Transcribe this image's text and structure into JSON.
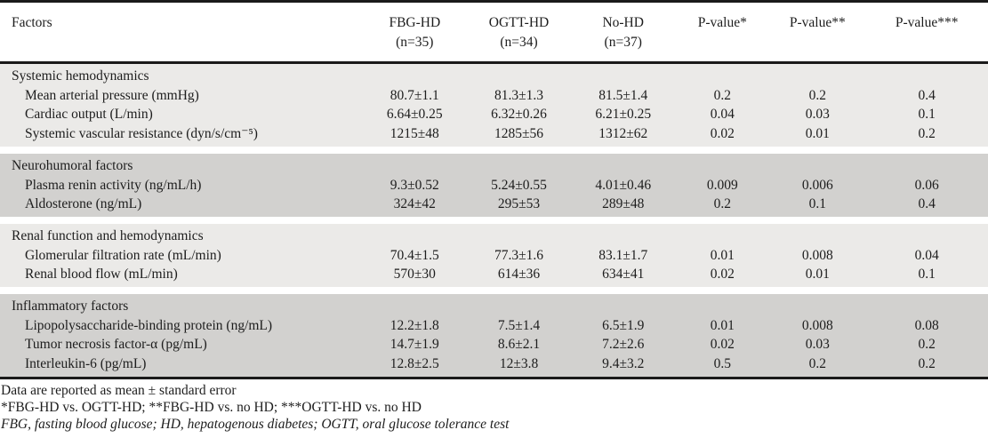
{
  "colors": {
    "band_light": "#ebeae8",
    "band_dark": "#d2d1cf",
    "rule": "#1a1a1a",
    "text": "#1d1d1d"
  },
  "header": {
    "factors_label": "Factors",
    "groups": [
      {
        "name": "FBG-HD",
        "sub": "(n=35)"
      },
      {
        "name": "OGTT-HD",
        "sub": "(n=34)"
      },
      {
        "name": "No-HD",
        "sub": "(n=37)"
      },
      {
        "name": "P-value*",
        "sub": ""
      },
      {
        "name": "P-value**",
        "sub": ""
      },
      {
        "name": "P-value***",
        "sub": ""
      }
    ]
  },
  "sections": [
    {
      "title": "Systemic hemodynamics",
      "shade": "light",
      "rows": [
        {
          "label": "Mean arterial pressure (mmHg)",
          "values": [
            "80.7±1.1",
            "81.3±1.3",
            "81.5±1.4",
            "0.2",
            "0.2",
            "0.4"
          ]
        },
        {
          "label": "Cardiac output (L/min)",
          "values": [
            "6.64±0.25",
            "6.32±0.26",
            "6.21±0.25",
            "0.04",
            "0.03",
            "0.1"
          ]
        },
        {
          "label": "Systemic vascular resistance (dyn/s/cm⁻⁵)",
          "values": [
            "1215±48",
            "1285±56",
            "1312±62",
            "0.02",
            "0.01",
            "0.2"
          ]
        }
      ]
    },
    {
      "title": "Neurohumoral factors",
      "shade": "dark",
      "rows": [
        {
          "label": "Plasma renin activity (ng/mL/h)",
          "values": [
            "9.3±0.52",
            "5.24±0.55",
            "4.01±0.46",
            "0.009",
            "0.006",
            "0.06"
          ]
        },
        {
          "label": "Aldosterone (ng/mL)",
          "values": [
            "324±42",
            "295±53",
            "289±48",
            "0.2",
            "0.1",
            "0.4"
          ]
        }
      ]
    },
    {
      "title": "Renal function and hemodynamics",
      "shade": "light",
      "rows": [
        {
          "label": "Glomerular filtration rate (mL/min)",
          "values": [
            "70.4±1.5",
            "77.3±1.6",
            "83.1±1.7",
            "0.01",
            "0.008",
            "0.04"
          ]
        },
        {
          "label": "Renal blood flow (mL/min)",
          "values": [
            "570±30",
            "614±36",
            "634±41",
            "0.02",
            "0.01",
            "0.1"
          ]
        }
      ]
    },
    {
      "title": "Inflammatory factors",
      "shade": "dark",
      "rows": [
        {
          "label": "Lipopolysaccharide-binding protein (ng/mL)",
          "values": [
            "12.2±1.8",
            "7.5±1.4",
            "6.5±1.9",
            "0.01",
            "0.008",
            "0.08"
          ]
        },
        {
          "label": "Tumor necrosis factor-α (pg/mL)",
          "values": [
            "14.7±1.9",
            "8.6±2.1",
            "7.2±2.6",
            "0.02",
            "0.03",
            "0.2"
          ]
        },
        {
          "label": "Interleukin-6 (pg/mL)",
          "values": [
            "12.8±2.5",
            "12±3.8",
            "9.4±3.2",
            "0.5",
            "0.2",
            "0.2"
          ]
        }
      ]
    }
  ],
  "footnotes": [
    "Data are reported as mean ± standard error",
    "*FBG-HD vs. OGTT-HD; **FBG-HD vs. no HD; ***OGTT-HD vs. no HD",
    "FBG, fasting blood glucose; HD, hepatogenous diabetes; OGTT, oral glucose tolerance test"
  ]
}
